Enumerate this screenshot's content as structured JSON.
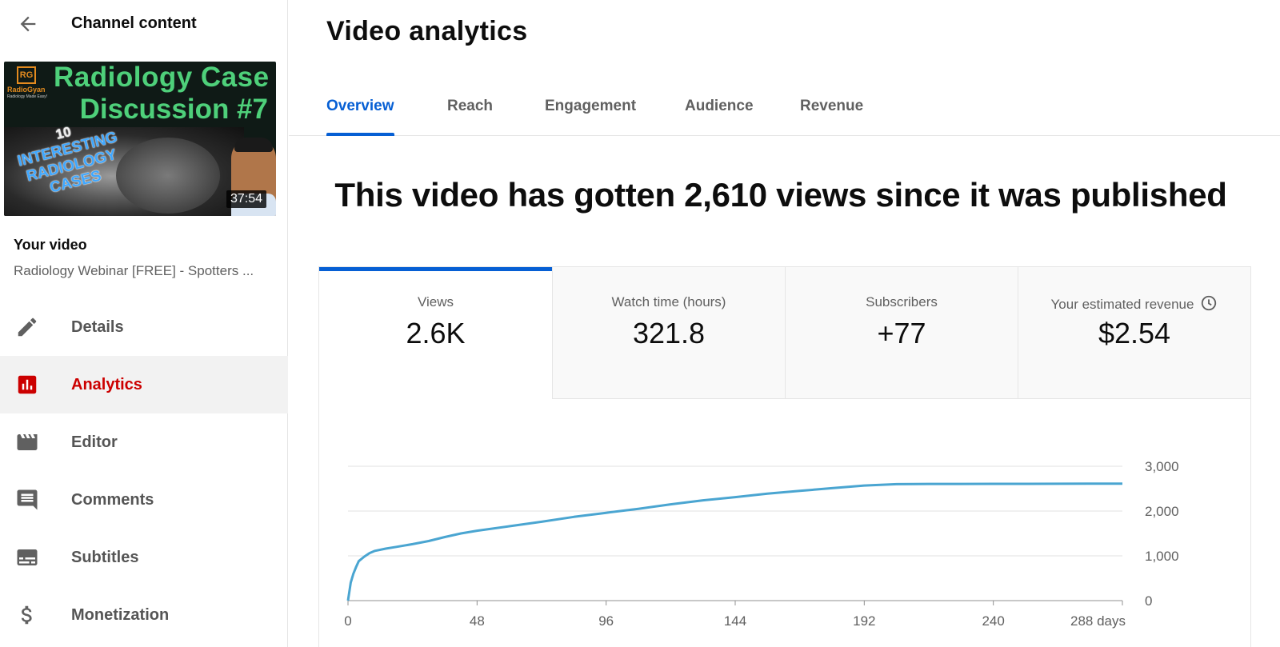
{
  "sidebar": {
    "header_title": "Channel content",
    "thumbnail": {
      "logo": "RG",
      "logo_text": "RadioGyan",
      "logo_sub": "Radiology Made Easy!",
      "title_line1": "Radiology Case",
      "title_line2": "Discussion #7",
      "stamp_number": "10",
      "stamp_line1": "INTERESTING",
      "stamp_line2": "RADIOLOGY",
      "stamp_line3": "CASES",
      "duration": "37:54"
    },
    "your_video_label": "Your video",
    "video_title": "Radiology Webinar [FREE] - Spotters ...",
    "items": [
      {
        "label": "Details",
        "icon": "pencil-icon"
      },
      {
        "label": "Analytics",
        "icon": "analytics-icon",
        "active": true
      },
      {
        "label": "Editor",
        "icon": "clapperboard-icon"
      },
      {
        "label": "Comments",
        "icon": "comment-icon"
      },
      {
        "label": "Subtitles",
        "icon": "subtitles-icon"
      },
      {
        "label": "Monetization",
        "icon": "dollar-icon"
      }
    ]
  },
  "main": {
    "title": "Video analytics",
    "tabs": [
      {
        "label": "Overview",
        "active": true
      },
      {
        "label": "Reach"
      },
      {
        "label": "Engagement"
      },
      {
        "label": "Audience"
      },
      {
        "label": "Revenue"
      }
    ],
    "headline": "This video has gotten 2,610 views since it was published",
    "metrics": [
      {
        "label": "Views",
        "value": "2.6K",
        "selected": true
      },
      {
        "label": "Watch time (hours)",
        "value": "321.8"
      },
      {
        "label": "Subscribers",
        "value": "+77"
      },
      {
        "label": "Your estimated revenue",
        "value": "$2.54",
        "icon": "clock-icon"
      }
    ]
  },
  "colors": {
    "accent": "#065fd4",
    "active_nav": "#cc0000",
    "line": "#4aa5d1"
  },
  "chart_data": {
    "type": "line",
    "x_tick_labels": [
      "0",
      "48",
      "96",
      "144",
      "192",
      "240",
      "288 days"
    ],
    "x_ticks": [
      0,
      48,
      96,
      144,
      192,
      240,
      288
    ],
    "y_tick_labels": [
      "3,000",
      "2,000",
      "1,000",
      "0"
    ],
    "y_ticks": [
      3000,
      2000,
      1000,
      0
    ],
    "xlim": [
      0,
      288
    ],
    "ylim": [
      0,
      3000
    ],
    "grid": true,
    "series": [
      {
        "x": [
          0,
          1,
          2,
          3,
          4,
          6,
          8,
          10,
          14,
          18,
          24,
          30,
          36,
          42,
          48,
          60,
          72,
          84,
          96,
          108,
          120,
          132,
          144,
          156,
          168,
          180,
          192,
          204,
          216,
          228,
          240,
          252,
          264,
          276,
          288
        ],
        "values": [
          0,
          400,
          600,
          750,
          880,
          980,
          1060,
          1110,
          1160,
          1200,
          1260,
          1330,
          1420,
          1500,
          1560,
          1660,
          1760,
          1870,
          1960,
          2050,
          2150,
          2240,
          2310,
          2390,
          2450,
          2510,
          2570,
          2600,
          2605,
          2606,
          2607,
          2608,
          2609,
          2610,
          2610
        ]
      }
    ]
  }
}
